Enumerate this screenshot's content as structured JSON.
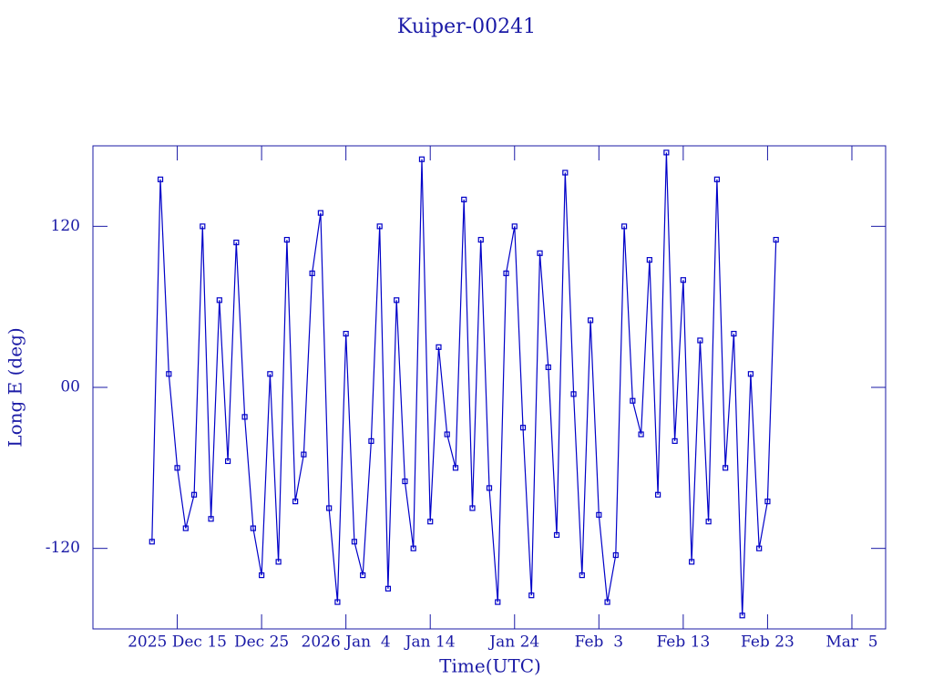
{
  "chart_data": {
    "type": "line",
    "title": "Kuiper-00241",
    "x_label": "Time(UTC)",
    "y_label": "Long E (deg)",
    "color": "#0000c8",
    "xlim": [
      "2025-12-05",
      "2026-03-09"
    ],
    "xticks": [
      {
        "value": "2025-12-15",
        "label": "2025 Dec 15"
      },
      {
        "value": "2025-12-25",
        "label": "Dec 25"
      },
      {
        "value": "2026-01-04",
        "label": "2026 Jan  4"
      },
      {
        "value": "2026-01-14",
        "label": "Jan 14"
      },
      {
        "value": "2026-01-24",
        "label": "Jan 24"
      },
      {
        "value": "2026-02-03",
        "label": "Feb  3"
      },
      {
        "value": "2026-02-13",
        "label": "Feb 13"
      },
      {
        "value": "2026-02-23",
        "label": "Feb 23"
      },
      {
        "value": "2026-03-05",
        "label": "Mar  5"
      }
    ],
    "ylim": [
      -180,
      180
    ],
    "yticks": [
      -120,
      {
        "value": 0,
        "label": "00"
      },
      120
    ],
    "x": [
      "2025-12-12",
      "2025-12-13",
      "2025-12-14",
      "2025-12-15",
      "2025-12-16",
      "2025-12-17",
      "2025-12-18",
      "2025-12-19",
      "2025-12-20",
      "2025-12-21",
      "2025-12-22",
      "2025-12-23",
      "2025-12-24",
      "2025-12-25",
      "2025-12-26",
      "2025-12-27",
      "2025-12-28",
      "2025-12-29",
      "2025-12-30",
      "2025-12-31",
      "2026-01-01",
      "2026-01-02",
      "2026-01-03",
      "2026-01-04",
      "2026-01-05",
      "2026-01-06",
      "2026-01-07",
      "2026-01-08",
      "2026-01-09",
      "2026-01-10",
      "2026-01-11",
      "2026-01-12",
      "2026-01-13",
      "2026-01-14",
      "2026-01-15",
      "2026-01-16",
      "2026-01-17",
      "2026-01-18",
      "2026-01-19",
      "2026-01-20",
      "2026-01-21",
      "2026-01-22",
      "2026-01-23",
      "2026-01-24",
      "2026-01-25",
      "2026-01-26",
      "2026-01-27",
      "2026-01-28",
      "2026-01-29",
      "2026-01-30",
      "2026-01-31",
      "2026-02-01",
      "2026-02-02",
      "2026-02-03",
      "2026-02-04",
      "2026-02-05",
      "2026-02-06",
      "2026-02-07",
      "2026-02-08",
      "2026-02-09",
      "2026-02-10",
      "2026-02-11",
      "2026-02-12",
      "2026-02-13",
      "2026-02-14",
      "2026-02-15",
      "2026-02-16",
      "2026-02-17",
      "2026-02-18",
      "2026-02-19",
      "2026-02-20",
      "2026-02-21",
      "2026-02-22",
      "2026-02-23",
      "2026-02-24"
    ],
    "values": [
      -115,
      155,
      10,
      -60,
      -105,
      -80,
      120,
      -98,
      65,
      -55,
      108,
      -22,
      -105,
      -140,
      10,
      -130,
      110,
      -85,
      -50,
      85,
      130,
      -90,
      -160,
      40,
      -115,
      -140,
      -40,
      120,
      -150,
      65,
      -70,
      -120,
      170,
      -100,
      30,
      -35,
      -60,
      140,
      -90,
      110,
      -75,
      -160,
      85,
      120,
      -30,
      -155,
      100,
      15,
      -110,
      160,
      -5,
      -140,
      50,
      -95,
      -160,
      -125,
      120,
      -10,
      -35,
      95,
      -80,
      175,
      -40,
      80,
      -130,
      35,
      -100,
      155,
      -60,
      40,
      -170,
      10,
      -120,
      -85,
      110
    ]
  }
}
